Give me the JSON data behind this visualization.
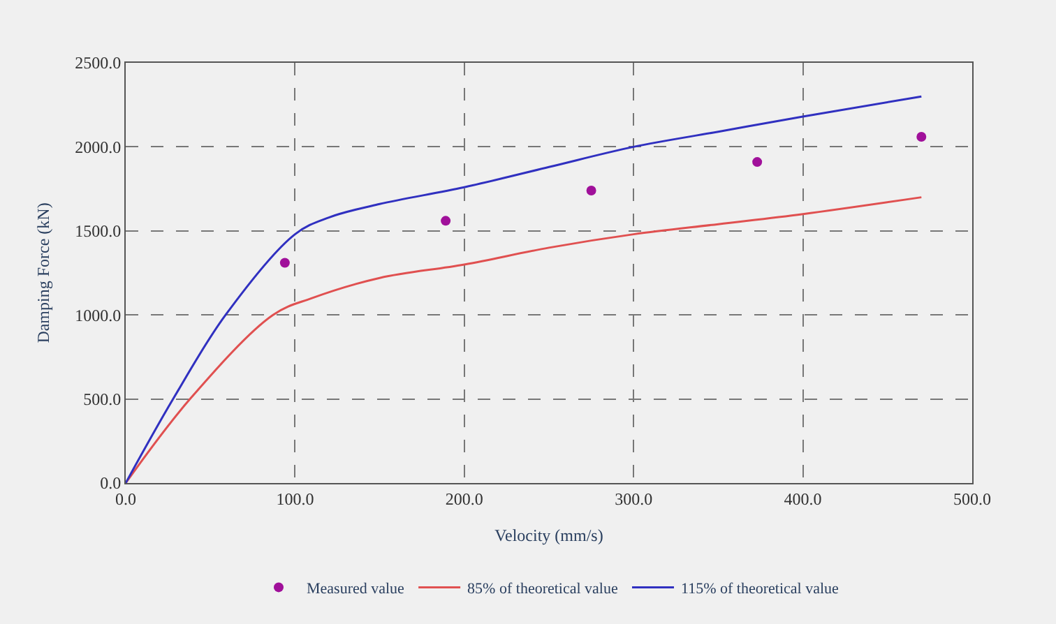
{
  "chart_data": {
    "type": "line",
    "xlabel": "Velocity (mm/s)",
    "ylabel": "Damping Force (kN)",
    "xlim": [
      0,
      500
    ],
    "ylim": [
      0,
      2500
    ],
    "xticks": [
      {
        "value": 0,
        "label": "0.0"
      },
      {
        "value": 100,
        "label": "100.0"
      },
      {
        "value": 200,
        "label": "200.0"
      },
      {
        "value": 300,
        "label": "300.0"
      },
      {
        "value": 400,
        "label": "400.0"
      },
      {
        "value": 500,
        "label": "500.0"
      }
    ],
    "yticks": [
      {
        "value": 0,
        "label": "0.0"
      },
      {
        "value": 500,
        "label": "500.0"
      },
      {
        "value": 1000,
        "label": "1000.0"
      },
      {
        "value": 1500,
        "label": "1500.0"
      },
      {
        "value": 2000,
        "label": "2000.0"
      },
      {
        "value": 2500,
        "label": "2500.0"
      }
    ],
    "grid": true,
    "legend": "bottom",
    "series": [
      {
        "name": "Measured value",
        "type": "scatter",
        "marker": "circle",
        "color": "#a0109a",
        "x": [
          94,
          189,
          275,
          373,
          470
        ],
        "values": [
          1310,
          1560,
          1740,
          1910,
          2060
        ]
      },
      {
        "name": "85% of theoretical value",
        "color": "#e05050",
        "x": [
          0,
          38,
          87,
          110,
          150,
          200,
          250,
          300,
          350,
          400,
          470
        ],
        "values": [
          0,
          500,
          1000,
          1100,
          1220,
          1300,
          1400,
          1480,
          1540,
          1600,
          1700
        ]
      },
      {
        "name": "115% of theoretical value",
        "color": "#3030c0",
        "x": [
          0,
          28,
          59,
          100,
          120,
          150,
          200,
          250,
          300,
          350,
          400,
          470
        ],
        "values": [
          0,
          500,
          1000,
          1480,
          1580,
          1660,
          1760,
          1880,
          2000,
          2090,
          2180,
          2300
        ]
      }
    ]
  }
}
